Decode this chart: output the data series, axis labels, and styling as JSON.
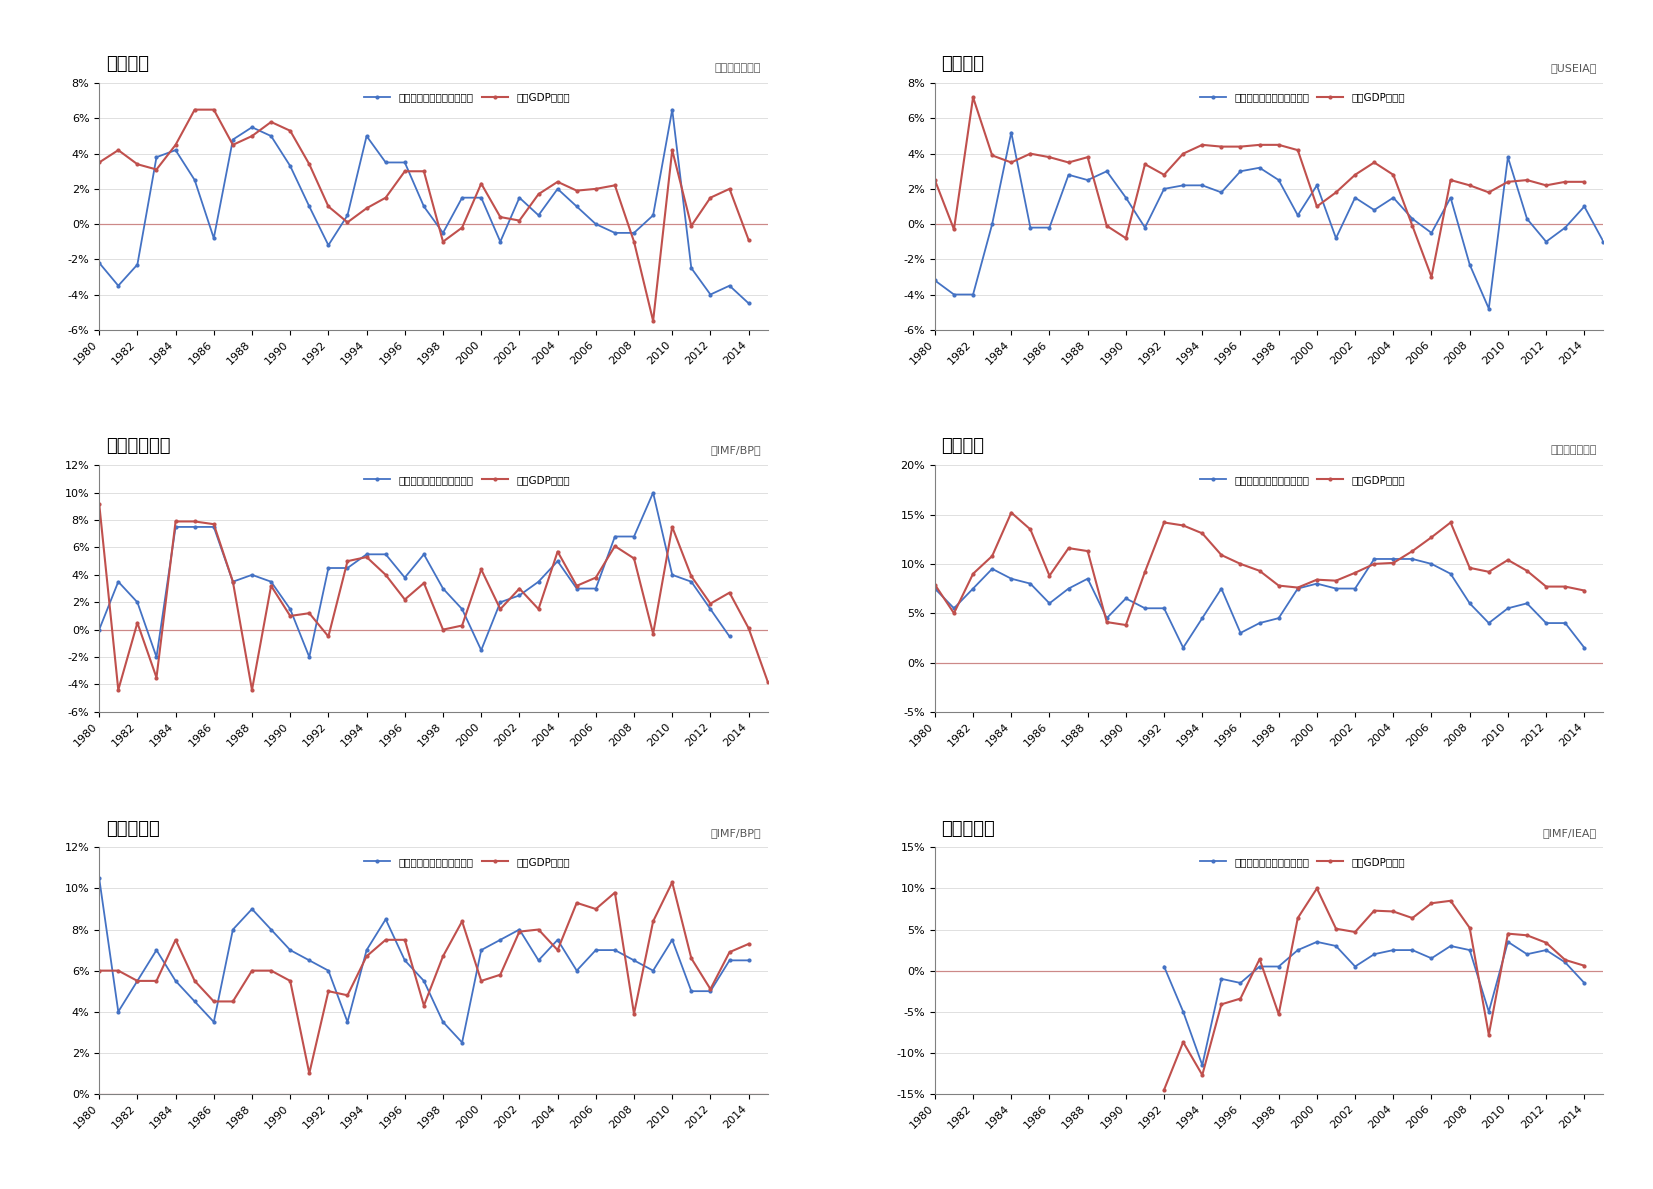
{
  "years": [
    1980,
    1981,
    1982,
    1983,
    1984,
    1985,
    1986,
    1987,
    1988,
    1989,
    1990,
    1991,
    1992,
    1993,
    1994,
    1995,
    1996,
    1997,
    1998,
    1999,
    2000,
    2001,
    2002,
    2003,
    2004,
    2005,
    2006,
    2007,
    2008,
    2009,
    2010,
    2011,
    2012,
    2013,
    2014,
    2015
  ],
  "japan": {
    "title": "＜日本＞",
    "source": "（経済産業省）",
    "energy": [
      -2.2,
      -3.5,
      -2.3,
      3.8,
      4.2,
      2.5,
      -0.8,
      4.8,
      5.5,
      5.0,
      3.3,
      1.0,
      -1.2,
      0.5,
      5.0,
      3.5,
      3.5,
      1.0,
      -0.5,
      1.5,
      1.5,
      -1.0,
      1.5,
      0.5,
      2.0,
      1.0,
      0.0,
      -0.5,
      -0.5,
      0.5,
      6.5,
      -2.5,
      -4.0,
      -3.5,
      -4.5,
      null
    ],
    "gdp": [
      3.5,
      4.2,
      3.4,
      3.1,
      4.5,
      6.5,
      6.5,
      4.5,
      5.0,
      5.8,
      5.3,
      3.4,
      1.0,
      0.1,
      0.9,
      1.5,
      3.0,
      3.0,
      -1.0,
      -0.2,
      2.3,
      0.4,
      0.2,
      1.7,
      2.4,
      1.9,
      2.0,
      2.2,
      -1.0,
      -5.5,
      4.2,
      -0.1,
      1.5,
      2.0,
      -0.9,
      null
    ],
    "ylim": [
      -6,
      8
    ],
    "yticks": [
      -6,
      -4,
      -2,
      0,
      2,
      4,
      6,
      8
    ]
  },
  "usa": {
    "title": "＜米国＞",
    "source": "（USEIA）",
    "energy": [
      -3.2,
      -4.0,
      -4.0,
      0.0,
      5.2,
      -0.2,
      -0.2,
      2.8,
      2.5,
      3.0,
      1.5,
      -0.2,
      2.0,
      2.2,
      2.2,
      1.8,
      3.0,
      3.2,
      2.5,
      0.5,
      2.2,
      -0.8,
      1.5,
      0.8,
      1.5,
      0.3,
      -0.5,
      1.5,
      -2.3,
      -4.8,
      3.8,
      0.3,
      -1.0,
      -0.2,
      1.0,
      -1.0
    ],
    "gdp": [
      2.5,
      -0.3,
      7.2,
      3.9,
      3.5,
      4.0,
      3.8,
      3.5,
      3.8,
      -0.1,
      -0.8,
      3.4,
      2.8,
      4.0,
      4.5,
      4.4,
      4.4,
      4.5,
      4.5,
      4.2,
      1.0,
      1.8,
      2.8,
      3.5,
      2.8,
      -0.1,
      -3.0,
      2.5,
      2.2,
      1.8,
      2.4,
      2.5,
      2.2,
      2.4,
      2.4,
      null
    ],
    "ylim": [
      -6,
      8
    ],
    "yticks": [
      -6,
      -4,
      -2,
      0,
      2,
      4,
      6,
      8
    ]
  },
  "brazil": {
    "title": "＜ブラジル＞",
    "source": "（IMF/BP）",
    "energy": [
      0.0,
      3.5,
      2.0,
      -2.0,
      7.5,
      7.5,
      7.5,
      3.5,
      4.0,
      3.5,
      1.5,
      -2.0,
      4.5,
      4.5,
      5.5,
      5.5,
      3.8,
      5.5,
      3.0,
      1.5,
      -1.5,
      2.0,
      2.5,
      3.5,
      5.0,
      3.0,
      3.0,
      6.8,
      6.8,
      10.0,
      4.0,
      3.5,
      1.5,
      -0.5,
      null,
      null
    ],
    "gdp": [
      9.2,
      -4.4,
      0.5,
      -3.5,
      7.9,
      7.9,
      7.7,
      3.5,
      -4.4,
      3.2,
      1.0,
      1.2,
      -0.5,
      5.0,
      5.3,
      4.0,
      2.2,
      3.4,
      0.0,
      0.3,
      4.4,
      1.5,
      3.0,
      1.5,
      5.7,
      3.2,
      3.8,
      6.1,
      5.2,
      -0.3,
      7.5,
      3.9,
      1.9,
      2.7,
      0.1,
      -3.8
    ],
    "ylim": [
      -6,
      12
    ],
    "yticks": [
      -6,
      -4,
      -2,
      0,
      2,
      4,
      6,
      8,
      10,
      12
    ]
  },
  "china": {
    "title": "＜中国＞",
    "source": "（国家統計局）",
    "energy": [
      7.5,
      5.5,
      7.5,
      9.5,
      8.5,
      8.0,
      6.0,
      7.5,
      8.5,
      4.5,
      6.5,
      5.5,
      5.5,
      1.5,
      4.5,
      7.5,
      3.0,
      4.0,
      4.5,
      7.5,
      8.0,
      7.5,
      7.5,
      10.5,
      10.5,
      10.5,
      10.0,
      9.0,
      6.0,
      4.0,
      5.5,
      6.0,
      4.0,
      4.0,
      1.5,
      null
    ],
    "gdp": [
      7.9,
      5.0,
      9.0,
      10.8,
      15.2,
      13.5,
      8.8,
      11.6,
      11.3,
      4.1,
      3.8,
      9.2,
      14.2,
      13.9,
      13.1,
      10.9,
      10.0,
      9.3,
      7.8,
      7.6,
      8.4,
      8.3,
      9.1,
      10.0,
      10.1,
      11.3,
      12.7,
      14.2,
      9.6,
      9.2,
      10.4,
      9.3,
      7.7,
      7.7,
      7.3,
      null
    ],
    "ylim": [
      -5,
      20
    ],
    "yticks": [
      -5,
      0,
      5,
      10,
      15,
      20
    ]
  },
  "india": {
    "title": "＜インド＞",
    "source": "（IMF/BP）",
    "energy": [
      10.5,
      4.0,
      5.5,
      7.0,
      5.5,
      4.5,
      3.5,
      8.0,
      9.0,
      8.0,
      7.0,
      6.5,
      6.0,
      3.5,
      7.0,
      8.5,
      6.5,
      5.5,
      3.5,
      2.5,
      7.0,
      7.5,
      8.0,
      6.5,
      7.5,
      6.0,
      7.0,
      7.0,
      6.5,
      6.0,
      7.5,
      5.0,
      5.0,
      6.5,
      6.5,
      null
    ],
    "gdp": [
      6.0,
      6.0,
      5.5,
      5.5,
      7.5,
      5.5,
      4.5,
      4.5,
      6.0,
      6.0,
      5.5,
      1.0,
      5.0,
      4.8,
      6.7,
      7.5,
      7.5,
      4.3,
      6.7,
      8.4,
      5.5,
      5.8,
      7.9,
      8.0,
      7.0,
      9.3,
      9.0,
      9.8,
      3.9,
      8.4,
      10.3,
      6.6,
      5.1,
      6.9,
      7.3,
      null
    ],
    "ylim": [
      0,
      12
    ],
    "yticks": [
      0,
      2,
      4,
      6,
      8,
      10,
      12
    ]
  },
  "russia": {
    "title": "＜ロシア＞",
    "source": "（IMF/IEA）",
    "energy": [
      null,
      null,
      null,
      null,
      null,
      null,
      null,
      null,
      null,
      null,
      null,
      null,
      0.5,
      -5.0,
      -11.5,
      -1.0,
      -1.5,
      0.5,
      0.5,
      2.5,
      3.5,
      3.0,
      0.5,
      2.0,
      2.5,
      2.5,
      1.5,
      3.0,
      2.5,
      -5.0,
      3.5,
      2.0,
      2.5,
      1.0,
      -1.5,
      null
    ],
    "gdp": [
      null,
      null,
      null,
      null,
      null,
      null,
      null,
      null,
      null,
      null,
      null,
      null,
      -14.5,
      -8.7,
      -12.7,
      -4.1,
      -3.4,
      1.4,
      -5.3,
      6.4,
      10.0,
      5.1,
      4.7,
      7.3,
      7.2,
      6.4,
      8.2,
      8.5,
      5.2,
      -7.8,
      4.5,
      4.3,
      3.4,
      1.3,
      0.6,
      null
    ],
    "ylim": [
      -15,
      15
    ],
    "yticks": [
      -15,
      -10,
      -5,
      0,
      5,
      10,
      15
    ]
  },
  "energy_color": "#4472C4",
  "gdp_color": "#C0504D",
  "zero_line_color": "#C0504D",
  "legend_energy": "一次エネルギー消費成長率",
  "legend_gdp": "実質GDP成長率"
}
